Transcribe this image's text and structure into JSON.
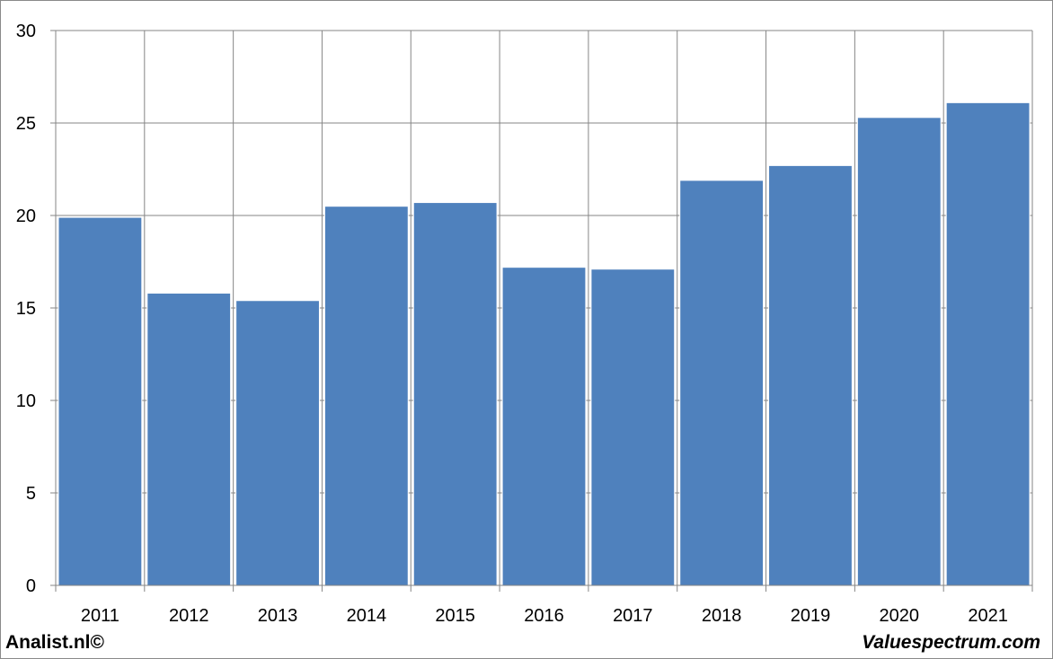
{
  "chart_data": {
    "type": "bar",
    "title": "",
    "xlabel": "",
    "ylabel": "",
    "categories": [
      "2011",
      "2012",
      "2013",
      "2014",
      "2015",
      "2016",
      "2017",
      "2018",
      "2019",
      "2020",
      "2021"
    ],
    "values": [
      19.9,
      15.8,
      15.4,
      20.5,
      20.7,
      17.2,
      17.1,
      21.9,
      22.7,
      25.3,
      26.1
    ],
    "ylim": [
      0,
      30
    ],
    "yticks": [
      "0",
      "5",
      "10",
      "15",
      "20",
      "25",
      "30"
    ],
    "grid": true,
    "legend": "none",
    "colors": {
      "bar": "#4f81bd",
      "grid": "#868686",
      "axis": "#868686"
    }
  },
  "footer": {
    "left_text": "Analist.nl©",
    "right_text": "Valuespectrum.com"
  }
}
